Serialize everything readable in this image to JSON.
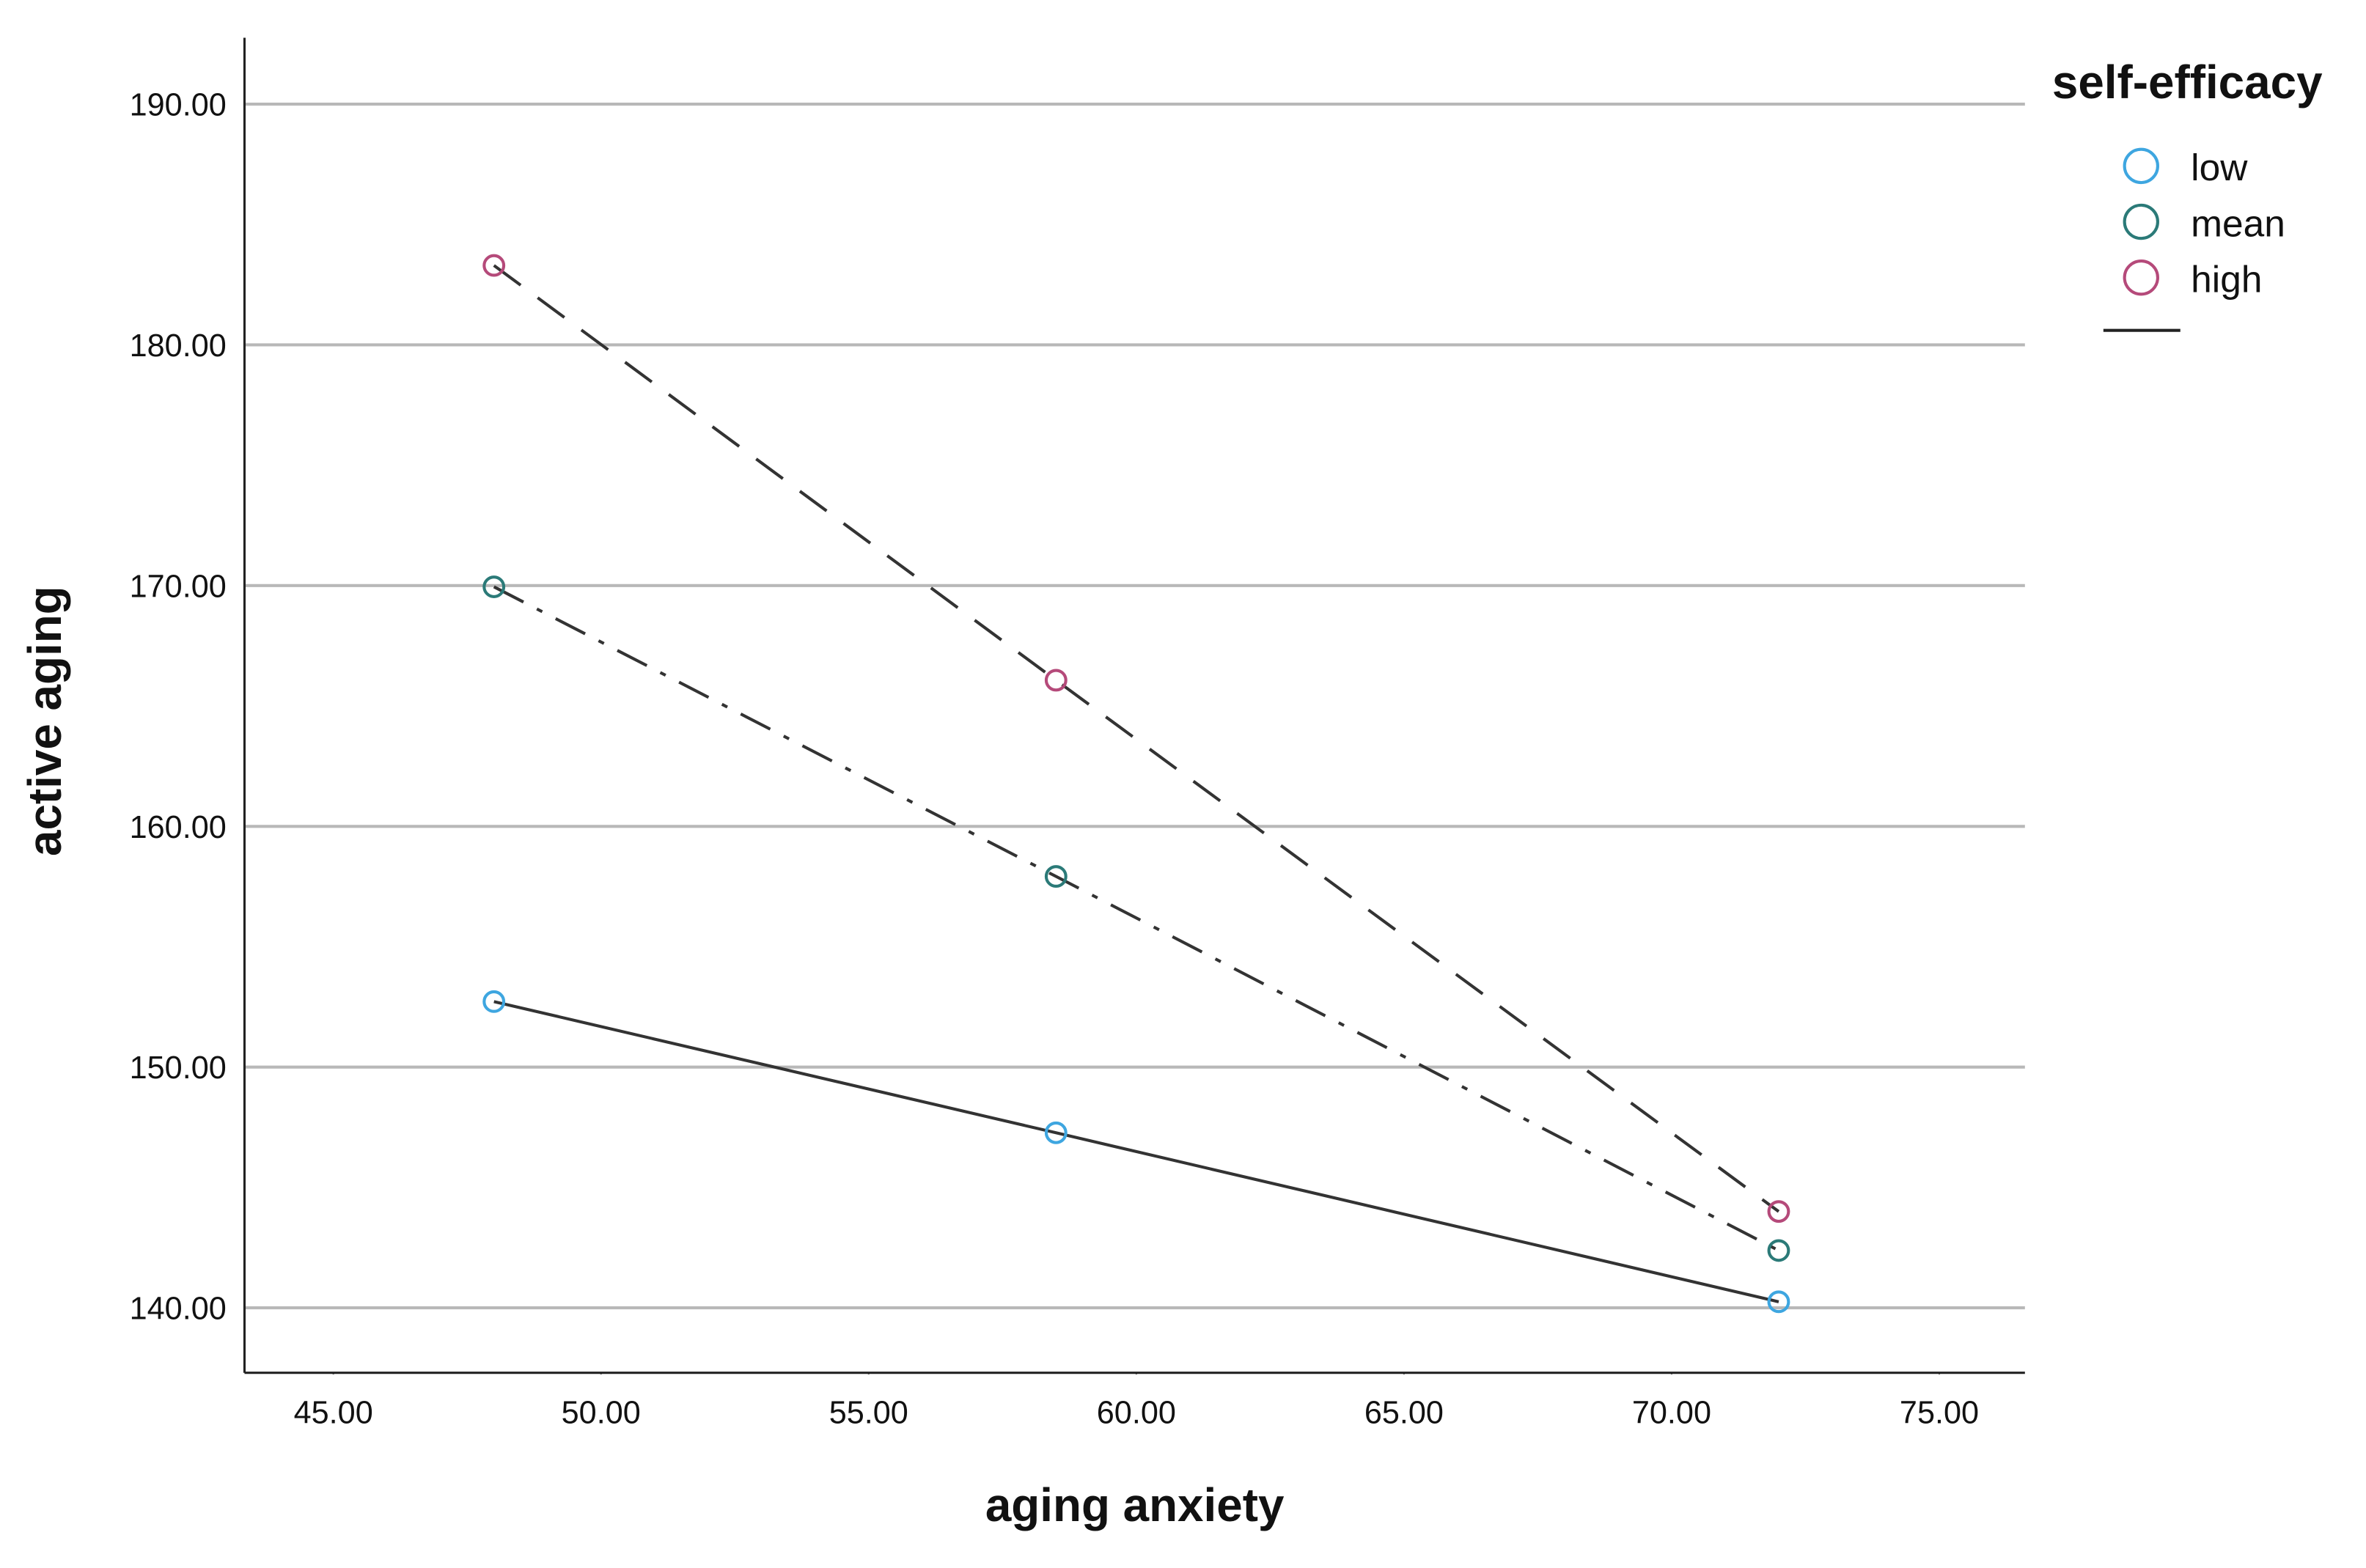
{
  "chart_data": {
    "type": "line",
    "x_label": "aging anxiety",
    "y_label": "active aging",
    "legend_title": "self-efficacy",
    "legend_position": "right",
    "grid": true,
    "x": [
      48,
      58.5,
      72
    ],
    "xlim": [
      43.34,
      76.6
    ],
    "ylim": [
      137.3,
      192.76
    ],
    "xticks": [
      {
        "value": 45,
        "label": "45.00"
      },
      {
        "value": 50,
        "label": "50.00"
      },
      {
        "value": 55,
        "label": "55.00"
      },
      {
        "value": 60,
        "label": "60.00"
      },
      {
        "value": 65,
        "label": "65.00"
      },
      {
        "value": 70,
        "label": "70.00"
      },
      {
        "value": 75,
        "label": "75.00"
      }
    ],
    "yticks": [
      {
        "value": 140,
        "label": "140.00"
      },
      {
        "value": 150,
        "label": "150.00"
      },
      {
        "value": 160,
        "label": "160.00"
      },
      {
        "value": 170,
        "label": "170.00"
      },
      {
        "value": 180,
        "label": "180.00"
      },
      {
        "value": 190,
        "label": "190.00"
      }
    ],
    "line_color": "#333333",
    "series": [
      {
        "name": "low",
        "color": "#3ea6e0",
        "dash": "solid",
        "values": [
          152.72,
          147.27,
          140.25
        ]
      },
      {
        "name": "mean",
        "color": "#2b7a78",
        "dash": "dashdot",
        "values": [
          169.95,
          157.92,
          142.38
        ]
      },
      {
        "name": "high",
        "color": "#b54a7a",
        "dash": "dash",
        "values": [
          183.3,
          166.07,
          144.0
        ]
      }
    ]
  }
}
